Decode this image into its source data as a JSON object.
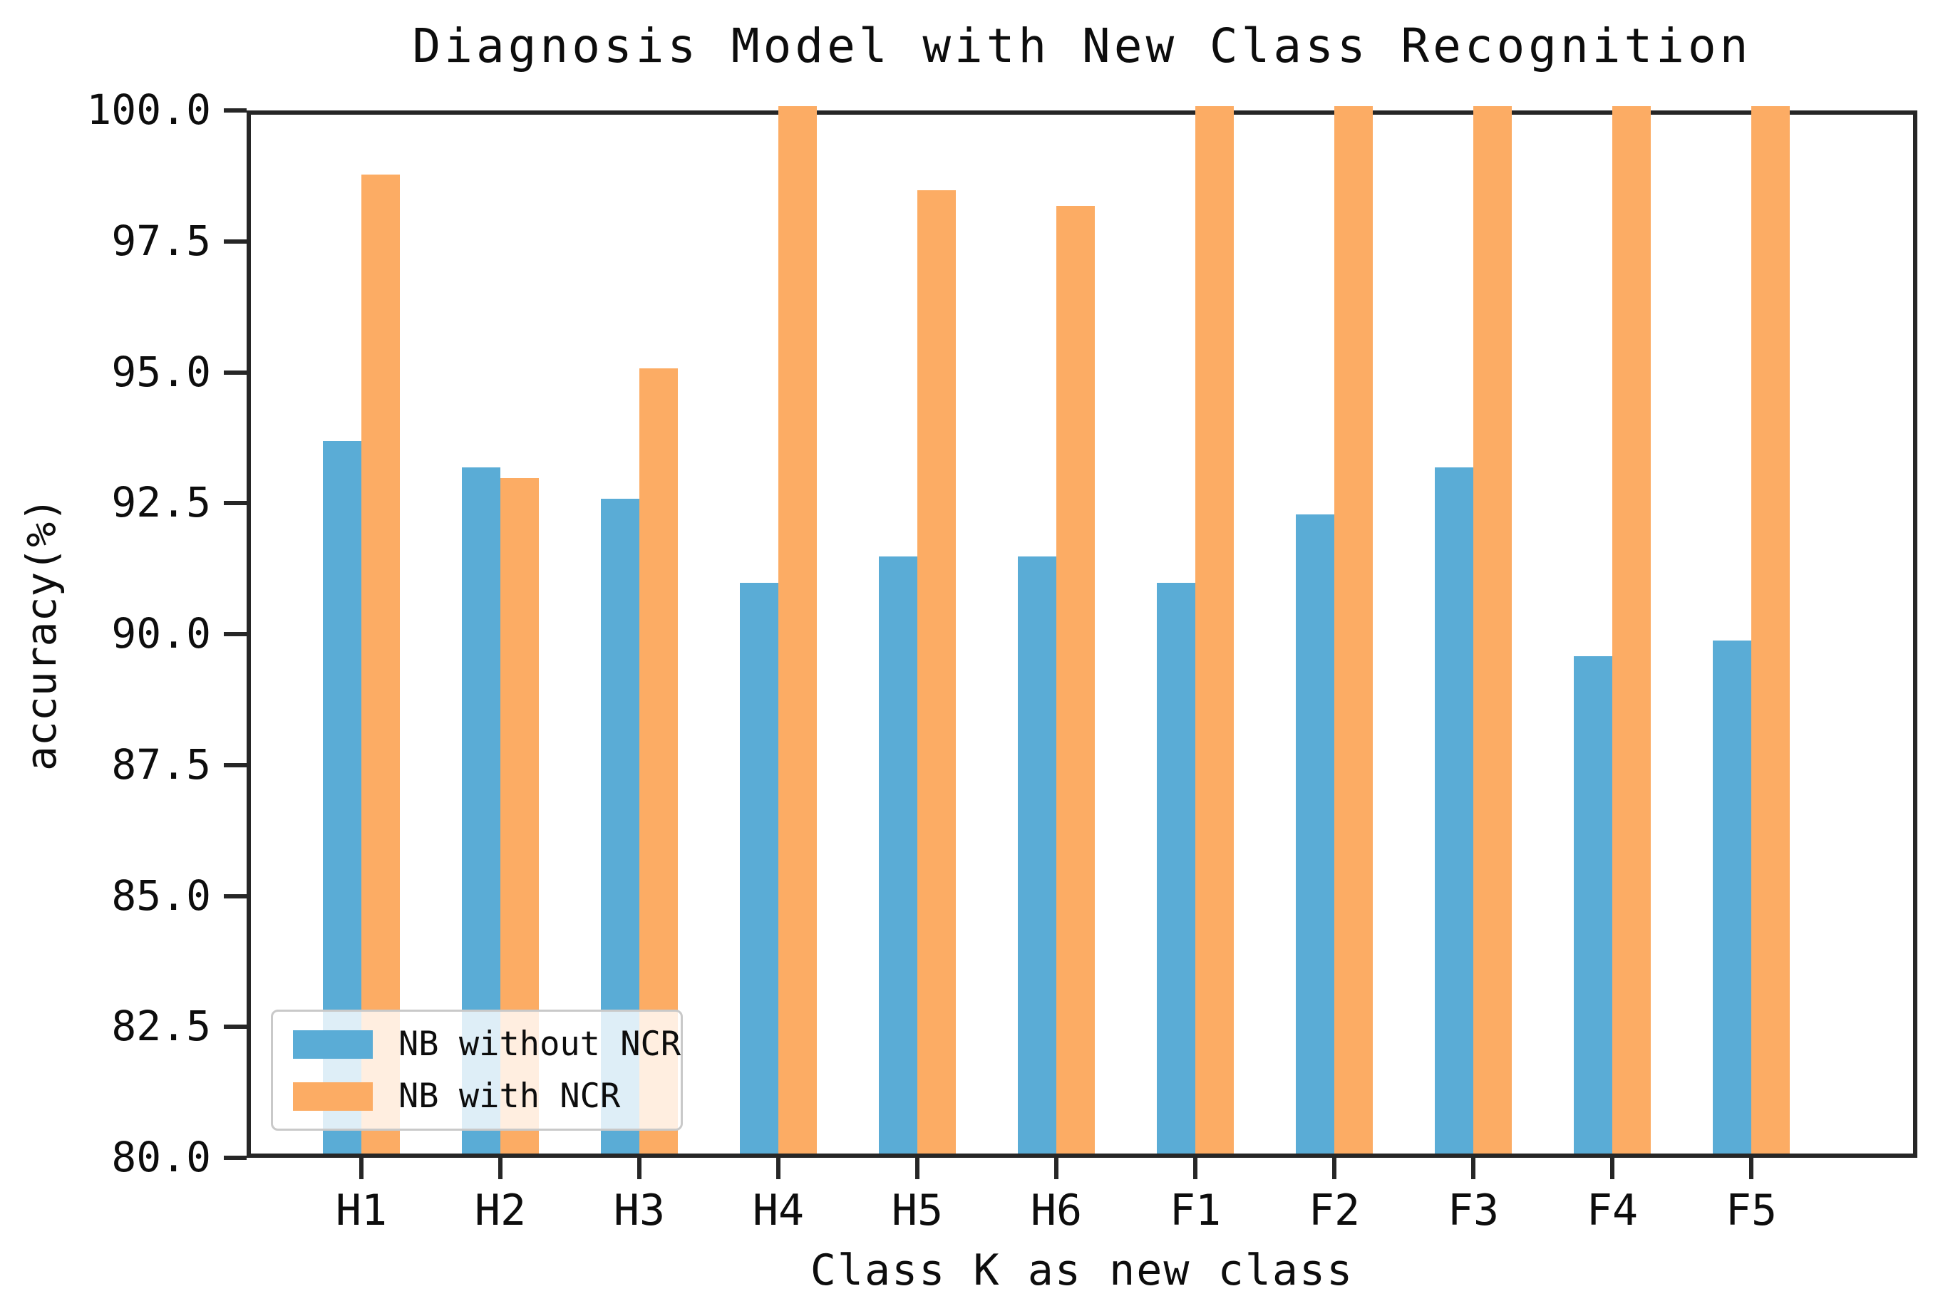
{
  "figure": {
    "title": "Diagnosis Model with New Class Recognition"
  },
  "chart_data": {
    "type": "bar",
    "title": "Diagnosis Model with New Class Recognition",
    "xlabel": "Class K as new class",
    "ylabel": "accuracy(%)",
    "categories": [
      "H1",
      "H2",
      "H3",
      "H4",
      "H5",
      "H6",
      "F1",
      "F2",
      "F3",
      "F4",
      "F5"
    ],
    "series": [
      {
        "name": "NB without NCR",
        "color": "#5AACD6",
        "values": [
          93.6,
          93.1,
          92.5,
          90.9,
          91.4,
          91.4,
          90.9,
          92.2,
          93.1,
          89.5,
          89.8
        ]
      },
      {
        "name": "NB with NCR",
        "color": "#FCAC64",
        "values": [
          98.7,
          92.9,
          95.0,
          100.0,
          98.4,
          98.1,
          100.0,
          100.0,
          100.0,
          100.0,
          100.0
        ]
      }
    ],
    "ylim": [
      80.0,
      100.0
    ],
    "yticks": [
      100.0,
      97.5,
      95.0,
      92.5,
      90.0,
      87.5,
      85.0,
      82.5,
      80.0
    ],
    "ytick_decimals": 1,
    "grid": false,
    "legend_position": "lower left",
    "axis_color": "#262626",
    "text_color": "#0d0d0d"
  }
}
